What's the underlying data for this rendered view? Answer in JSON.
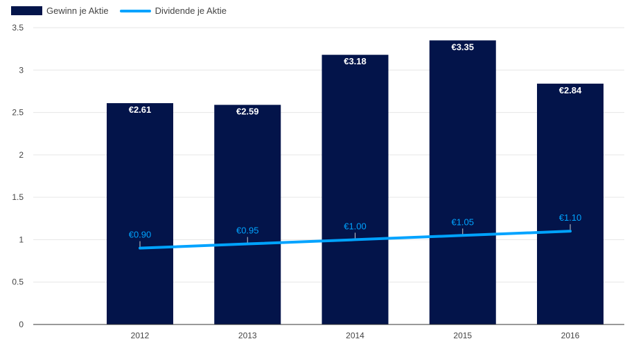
{
  "colors": {
    "bar": "#03144a",
    "line": "#00a3ff",
    "grid": "#e6e6e6",
    "axis": "#333333",
    "tick_text": "#444444",
    "bar_label": "#ffffff"
  },
  "legend": {
    "bars_label": "Gewinn je Aktie",
    "line_label": "Dividende je Aktie"
  },
  "chart_data": {
    "type": "bar",
    "categories": [
      "2012",
      "2013",
      "2014",
      "2015",
      "2016"
    ],
    "series": [
      {
        "name": "Gewinn je Aktie",
        "type": "bar",
        "values": [
          2.61,
          2.59,
          3.18,
          3.35,
          2.84
        ],
        "labels": [
          "€2.61",
          "€2.59",
          "€3.18",
          "€3.35",
          "€2.84"
        ]
      },
      {
        "name": "Dividende je Aktie",
        "type": "line",
        "values": [
          0.9,
          0.95,
          1.0,
          1.05,
          1.1
        ],
        "labels": [
          "€0.90",
          "€0.95",
          "€1.00",
          "€1.05",
          "€1.10"
        ]
      }
    ],
    "ylim": [
      0,
      3.5
    ],
    "yticks": [
      "0",
      "0.5",
      "1",
      "1.5",
      "2",
      "2.5",
      "3",
      "3.5"
    ],
    "ytick_values": [
      0,
      0.5,
      1,
      1.5,
      2,
      2.5,
      3,
      3.5
    ],
    "xlabel": "",
    "ylabel": "",
    "grid": true,
    "legend_position": "top-left"
  }
}
